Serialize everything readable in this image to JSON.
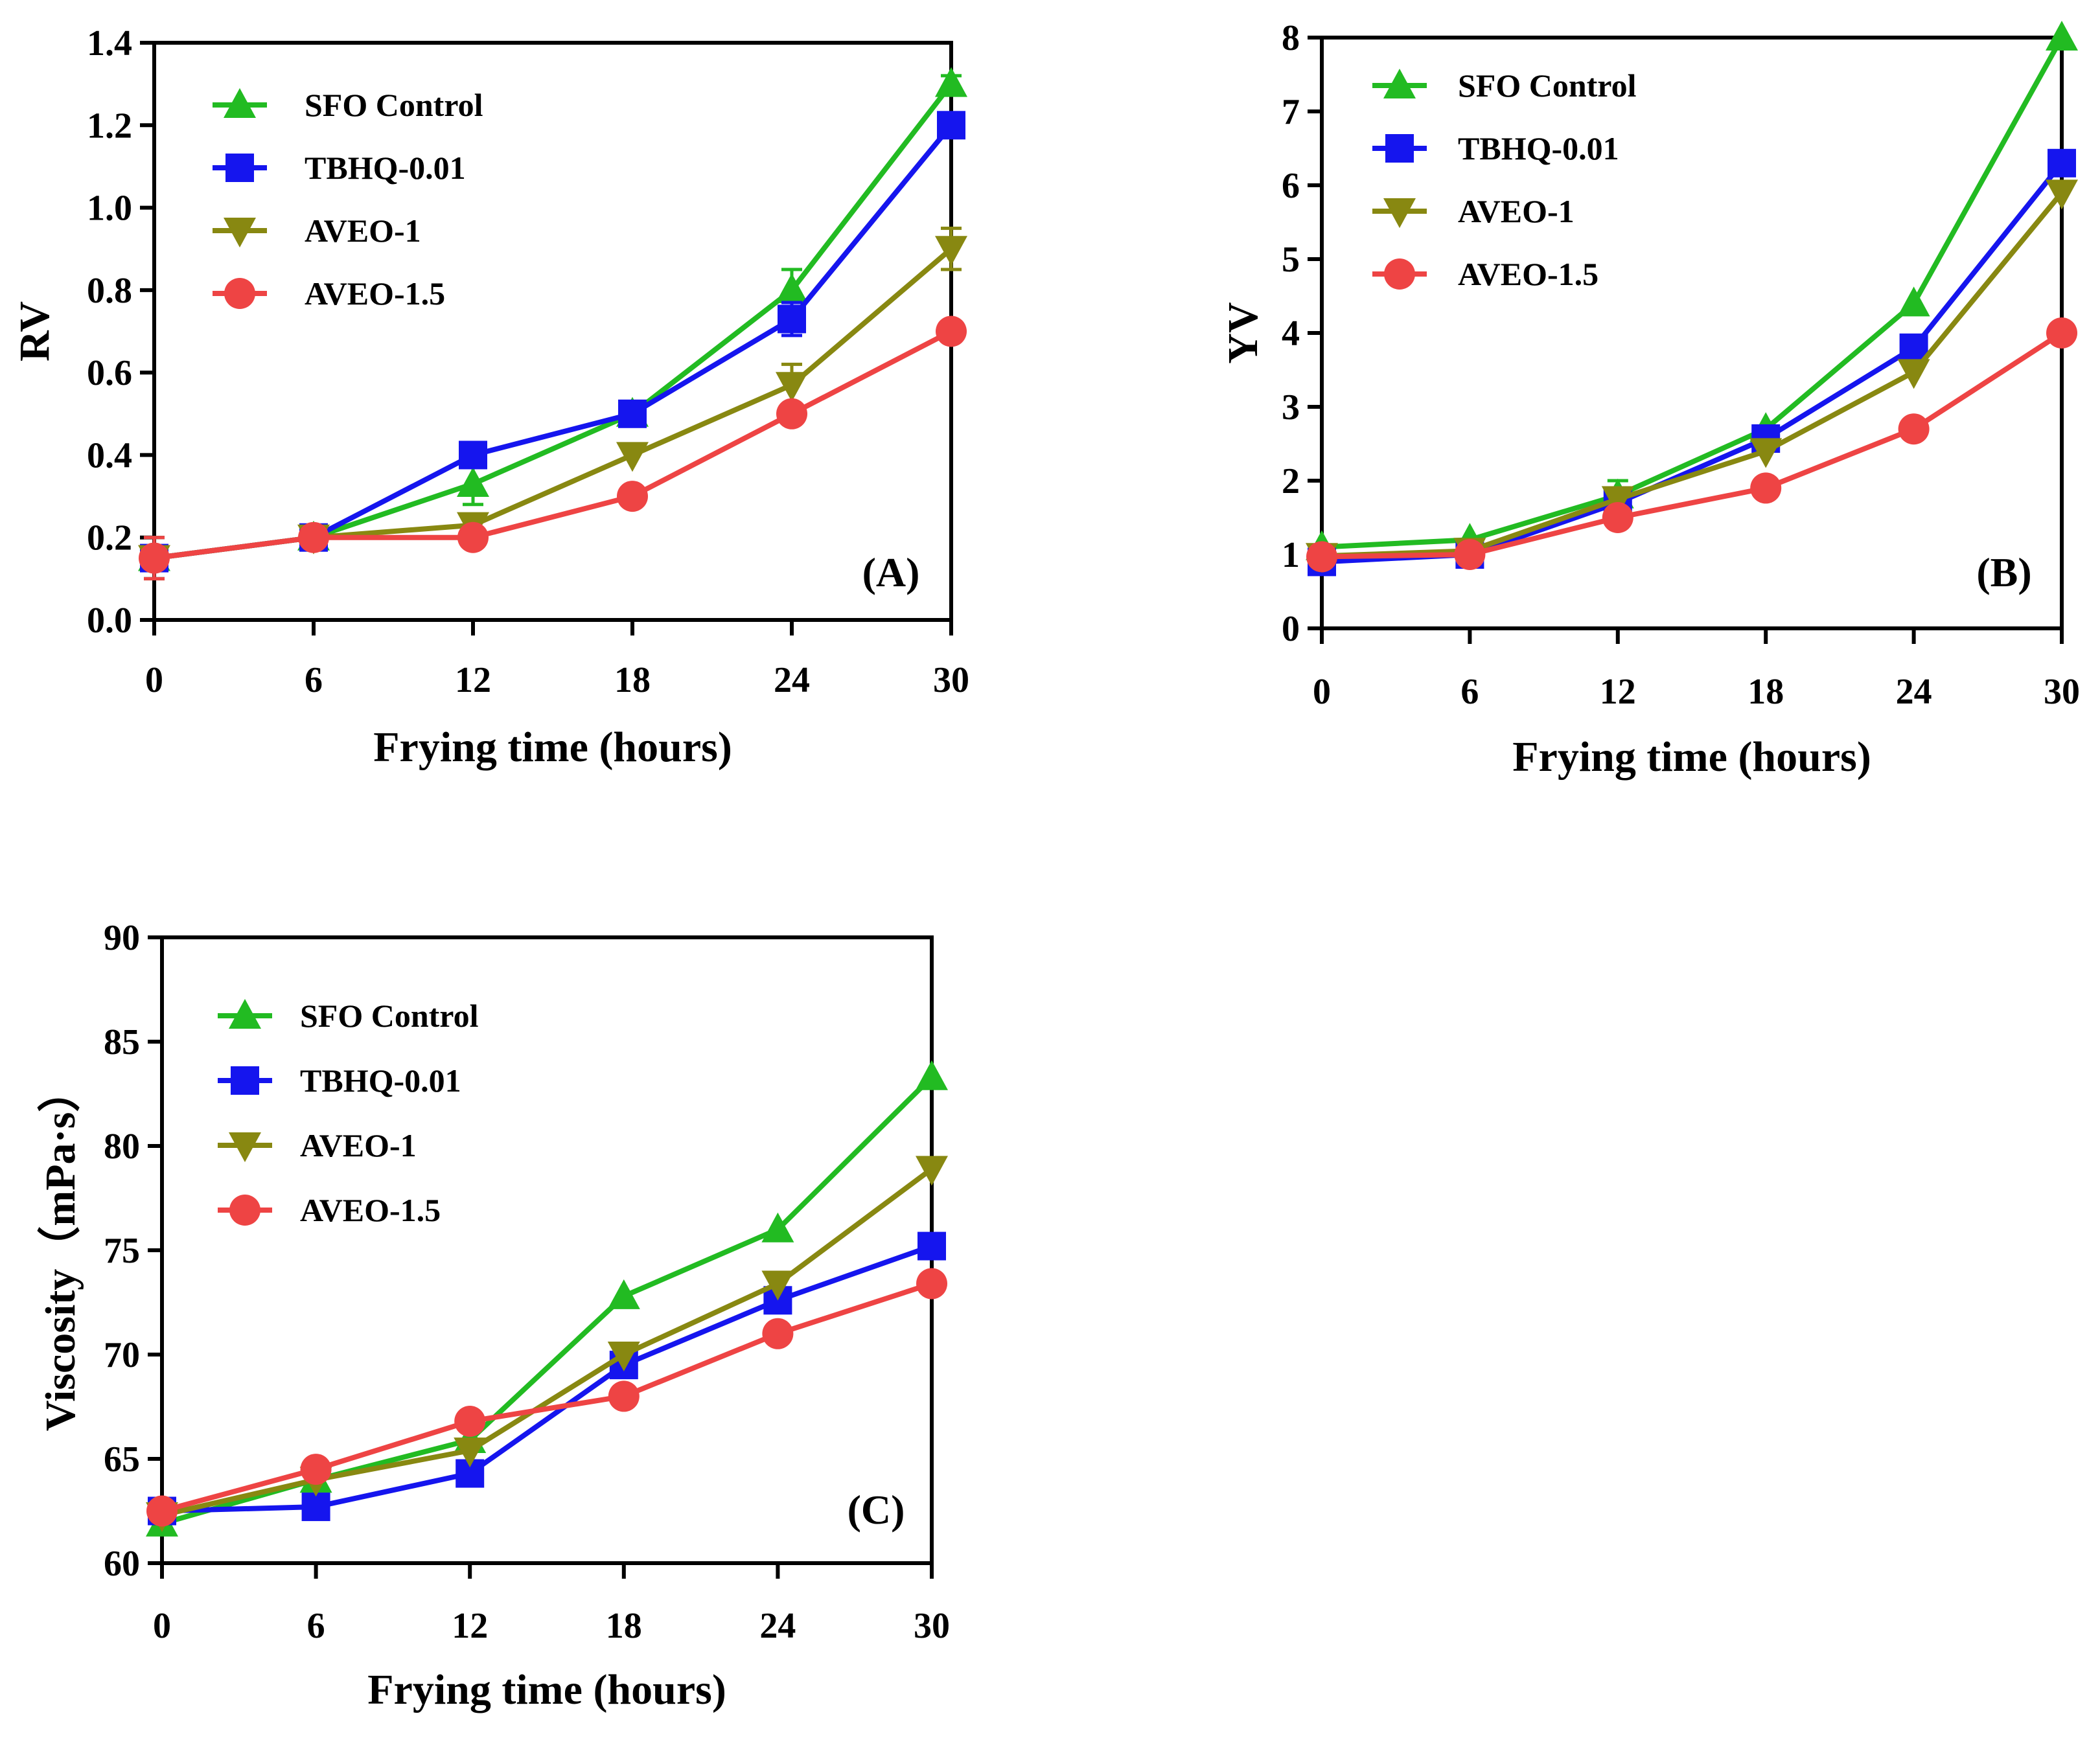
{
  "chart_data": [
    {
      "type": "line",
      "panel_label": "(A)",
      "title": "",
      "xlabel": "Frying time (hours)",
      "ylabel": "RV",
      "x": [
        0,
        6,
        12,
        18,
        24,
        30
      ],
      "xticks": [
        "0",
        "6",
        "12",
        "18",
        "24",
        "30"
      ],
      "xlim": [
        0,
        30
      ],
      "ylim": [
        0,
        1.4
      ],
      "yticks": [
        "0.0",
        "0.2",
        "0.4",
        "0.6",
        "0.8",
        "1.0",
        "1.2",
        "1.4"
      ],
      "legend_position": "top-left",
      "grid": false,
      "series": [
        {
          "name": "SFO Control",
          "color": "#22bb22",
          "marker": "triangle-up",
          "values": [
            0.15,
            0.2,
            0.33,
            0.5,
            0.8,
            1.3
          ],
          "errors": [
            0.05,
            0,
            0.05,
            0,
            0.05,
            0.02
          ]
        },
        {
          "name": "TBHQ-0.01",
          "color": "#1515ee",
          "marker": "square",
          "values": [
            0.15,
            0.2,
            0.4,
            0.5,
            0.73,
            1.2
          ],
          "errors": [
            0.05,
            0,
            0,
            0,
            0.04,
            0
          ]
        },
        {
          "name": "AVEO-1",
          "color": "#888811",
          "marker": "triangle-down",
          "values": [
            0.15,
            0.2,
            0.23,
            0.4,
            0.57,
            0.9
          ],
          "errors": [
            0.05,
            0,
            0.02,
            0,
            0.05,
            0.05
          ]
        },
        {
          "name": "AVEO-1.5",
          "color": "#ee4444",
          "marker": "circle",
          "values": [
            0.15,
            0.2,
            0.2,
            0.3,
            0.5,
            0.7
          ],
          "errors": [
            0.05,
            0,
            0,
            0,
            0,
            0
          ]
        }
      ]
    },
    {
      "type": "line",
      "panel_label": "(B)",
      "title": "",
      "xlabel": "Frying time (hours)",
      "ylabel": "YV",
      "x": [
        0,
        6,
        12,
        18,
        24,
        30
      ],
      "xticks": [
        "0",
        "6",
        "12",
        "18",
        "24",
        "30"
      ],
      "xlim": [
        0,
        30
      ],
      "ylim": [
        0,
        8
      ],
      "yticks": [
        "0",
        "1",
        "2",
        "3",
        "4",
        "5",
        "6",
        "7",
        "8"
      ],
      "legend_position": "top-left",
      "grid": false,
      "series": [
        {
          "name": "SFO Control",
          "color": "#22bb22",
          "marker": "triangle-up",
          "values": [
            1.1,
            1.2,
            1.8,
            2.7,
            4.4,
            8.0
          ],
          "errors": [
            0,
            0,
            0.2,
            0,
            0,
            0
          ]
        },
        {
          "name": "TBHQ-0.01",
          "color": "#1515ee",
          "marker": "square",
          "values": [
            0.9,
            1.0,
            1.7,
            2.57,
            3.8,
            6.3
          ],
          "errors": [
            0,
            0,
            0,
            0,
            0,
            0
          ]
        },
        {
          "name": "AVEO-1",
          "color": "#888811",
          "marker": "triangle-down",
          "values": [
            0.98,
            1.05,
            1.75,
            2.4,
            3.47,
            5.9
          ],
          "errors": [
            0,
            0,
            0,
            0,
            0,
            0
          ]
        },
        {
          "name": "AVEO-1.5",
          "color": "#ee4444",
          "marker": "circle",
          "values": [
            0.97,
            1.0,
            1.5,
            1.9,
            2.7,
            4.0
          ],
          "errors": [
            0,
            0,
            0,
            0,
            0,
            0
          ]
        }
      ]
    },
    {
      "type": "line",
      "panel_label": "(C)",
      "title": "",
      "xlabel": "Frying time (hours)",
      "ylabel": "Viscosity（mPa·s）",
      "x": [
        0,
        6,
        12,
        18,
        24,
        30
      ],
      "xticks": [
        "0",
        "6",
        "12",
        "18",
        "24",
        "30"
      ],
      "xlim": [
        0,
        30
      ],
      "ylim": [
        60,
        90
      ],
      "yticks": [
        "60",
        "65",
        "70",
        "75",
        "80",
        "85",
        "90"
      ],
      "legend_position": "top-left",
      "grid": false,
      "series": [
        {
          "name": "SFO Control",
          "color": "#22bb22",
          "marker": "triangle-up",
          "values": [
            61.9,
            64.0,
            65.9,
            72.8,
            76.0,
            83.3
          ],
          "errors": [
            0,
            0,
            0,
            0,
            0,
            0
          ]
        },
        {
          "name": "TBHQ-0.01",
          "color": "#1515ee",
          "marker": "square",
          "values": [
            62.5,
            62.7,
            64.3,
            69.5,
            72.6,
            75.2
          ],
          "errors": [
            0,
            0,
            0,
            0,
            0,
            0
          ]
        },
        {
          "name": "AVEO-1",
          "color": "#888811",
          "marker": "triangle-down",
          "values": [
            62.3,
            64.0,
            65.4,
            70.0,
            73.4,
            78.9
          ],
          "errors": [
            0,
            0,
            0,
            0,
            0,
            0
          ]
        },
        {
          "name": "AVEO-1.5",
          "color": "#ee4444",
          "marker": "circle",
          "values": [
            62.5,
            64.5,
            66.8,
            68.0,
            71.0,
            73.4
          ],
          "errors": [
            0,
            0,
            0,
            0,
            0,
            0
          ]
        }
      ]
    }
  ]
}
